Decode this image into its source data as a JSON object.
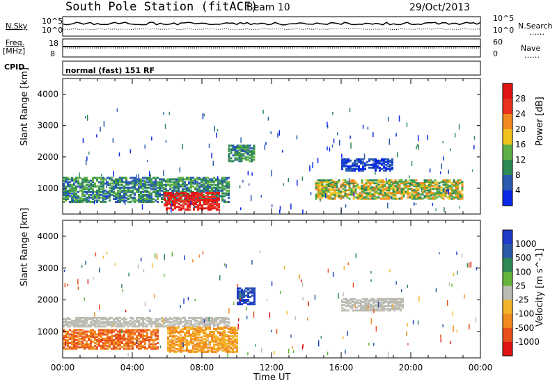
{
  "header": {
    "station": "South Pole Station (fitACF)",
    "beam": "Beam 10",
    "date": "29/Oct/2013"
  },
  "top_panels": {
    "nsky_label": "N.Sky",
    "nsearch_label": "N.Search",
    "nsky_ticks": [
      "10^5",
      "10^0"
    ],
    "nsearch_ticks": [
      "10^5",
      "10^0"
    ],
    "freq_label": "Freq.",
    "freq_unit": "[MHz]",
    "freq_ticks": [
      "18",
      "8"
    ],
    "nave_label": "Nave",
    "nave_ticks": [
      "60",
      "0"
    ],
    "cpid_label": "CPID",
    "cpid_text": "normal (fast) 151 RF",
    "legend_dots": "……"
  },
  "chart_data": [
    {
      "type": "heatmap",
      "name": "power",
      "ylabel": "Slant Range [km]",
      "yticks": [
        1000,
        2000,
        3000,
        4000
      ],
      "xlim": [
        0,
        24
      ],
      "ylim": [
        180,
        4500
      ],
      "colorbar": {
        "label": "Power [dB]",
        "ticks": [
          "4",
          "8",
          "12",
          "16",
          "20",
          "24",
          "28"
        ],
        "colors": [
          "#0a28e6",
          "#2a5ab0",
          "#2e8a55",
          "#5cb046",
          "#f2c31d",
          "#f28a1f",
          "#e8321e",
          "#e01414"
        ]
      },
      "features": [
        {
          "x_start": 0.0,
          "x_end": 9.5,
          "range_start": 600,
          "range_end": 1400,
          "level": "low-mid"
        },
        {
          "x_start": 5.8,
          "x_end": 9.0,
          "range_start": 350,
          "range_end": 900,
          "level": "high"
        },
        {
          "x_start": 9.5,
          "x_end": 11.0,
          "range_start": 1900,
          "range_end": 2400,
          "level": "low-mid"
        },
        {
          "x_start": 14.5,
          "x_end": 23.0,
          "range_start": 700,
          "range_end": 1300,
          "level": "mid"
        },
        {
          "x_start": 16.0,
          "x_end": 19.0,
          "range_start": 1600,
          "range_end": 2000,
          "level": "low"
        }
      ]
    },
    {
      "type": "heatmap",
      "name": "velocity",
      "ylabel": "Slant Range [km]",
      "yticks": [
        1000,
        2000,
        3000,
        4000
      ],
      "xlabel": "Time UT",
      "xticks": [
        "00:00",
        "04:00",
        "08:00",
        "12:00",
        "16:00",
        "20:00",
        "00:00"
      ],
      "xlim": [
        0,
        24
      ],
      "ylim": [
        180,
        4500
      ],
      "colorbar": {
        "label": "Velocity [m s^-1]",
        "ticks": [
          "1000",
          "500",
          "100",
          "25",
          "-25",
          "-100",
          "-500",
          "-1000"
        ],
        "colors": [
          "#1f3cc8",
          "#2c5aa8",
          "#2e8a55",
          "#66b43a",
          "#bdbdb5",
          "#f2b52a",
          "#f28a1f",
          "#e8501c",
          "#e01414"
        ]
      },
      "features": [
        {
          "x_start": 0.0,
          "x_end": 5.5,
          "range_start": 500,
          "range_end": 1100,
          "level": "negative"
        },
        {
          "x_start": 0.0,
          "x_end": 9.5,
          "range_start": 1200,
          "range_end": 1500,
          "level": "near-zero"
        },
        {
          "x_start": 6.0,
          "x_end": 10.0,
          "range_start": 400,
          "range_end": 1200,
          "level": "weak-negative"
        },
        {
          "x_start": 10.0,
          "x_end": 11.0,
          "range_start": 1900,
          "range_end": 2400,
          "level": "positive"
        },
        {
          "x_start": 16.0,
          "x_end": 19.5,
          "range_start": 1700,
          "range_end": 2100,
          "level": "near-zero"
        }
      ]
    }
  ]
}
